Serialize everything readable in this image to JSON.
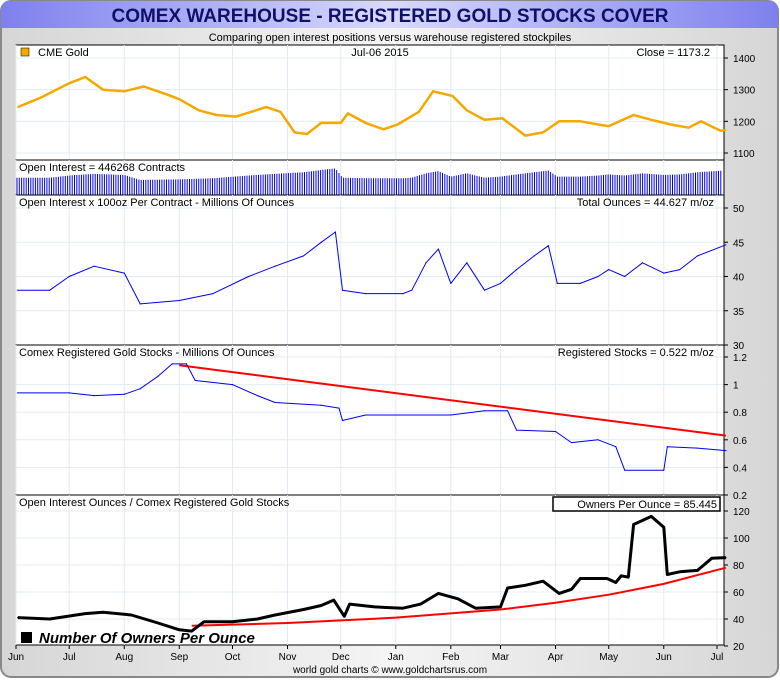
{
  "title": "COMEX WAREHOUSE - REGISTERED GOLD STOCKS COVER",
  "subtitle": "Comparing open interest positions versus warehouse registered stockpiles",
  "footer": "world gold charts © www.goldchartsrus.com",
  "colors": {
    "gold": "#f5a800",
    "blue": "#0000ee",
    "red": "#ff0000",
    "black": "#000000",
    "title_text": "#10106a",
    "title_bar": "#8a8cf0"
  },
  "chart_data": [
    {
      "type": "line",
      "legend": "CME Gold",
      "date_label": "Jul-06  2015",
      "readout": "Close = 1173.2",
      "ylim": [
        1080,
        1420
      ],
      "yticks": [
        "1400",
        "1300",
        "1200",
        "1100"
      ],
      "x": [
        "2014-06-02",
        "2014-06-15",
        "2014-07-01",
        "2014-07-10",
        "2014-07-20",
        "2014-08-01",
        "2014-08-12",
        "2014-08-25",
        "2014-09-01",
        "2014-09-12",
        "2014-09-22",
        "2014-10-03",
        "2014-10-20",
        "2014-10-28",
        "2014-11-05",
        "2014-11-12",
        "2014-11-20",
        "2014-12-01",
        "2014-12-05",
        "2014-12-15",
        "2014-12-25",
        "2015-01-02",
        "2015-01-14",
        "2015-01-22",
        "2015-02-02",
        "2015-02-10",
        "2015-02-20",
        "2015-03-02",
        "2015-03-15",
        "2015-03-25",
        "2015-04-03",
        "2015-04-15",
        "2015-04-25",
        "2015-05-01",
        "2015-05-15",
        "2015-05-25",
        "2015-06-05",
        "2015-06-15",
        "2015-06-22",
        "2015-07-03",
        "2015-07-06"
      ],
      "values": [
        1245,
        1275,
        1320,
        1340,
        1300,
        1295,
        1310,
        1285,
        1270,
        1235,
        1220,
        1215,
        1245,
        1230,
        1165,
        1160,
        1195,
        1195,
        1225,
        1195,
        1175,
        1190,
        1230,
        1295,
        1280,
        1235,
        1205,
        1210,
        1155,
        1165,
        1200,
        1200,
        1190,
        1185,
        1220,
        1205,
        1190,
        1180,
        1200,
        1170,
        1173.2
      ]
    },
    {
      "type": "bar",
      "label": "Open Interest = 446268 Contracts"
    },
    {
      "type": "line",
      "label": "Open Interest x 100oz Per Contract - Millions Of Ounces",
      "readout": "Total Ounces = 44.627 m/oz",
      "ylim": [
        30,
        52
      ],
      "yticks": [
        "50",
        "45",
        "40",
        "35",
        "30"
      ],
      "x": [
        "2014-06-02",
        "2014-06-20",
        "2014-07-01",
        "2014-07-15",
        "2014-08-01",
        "2014-08-10",
        "2014-09-01",
        "2014-09-20",
        "2014-10-10",
        "2014-10-25",
        "2014-11-10",
        "2014-11-20",
        "2014-11-28",
        "2014-12-02",
        "2014-12-15",
        "2015-01-05",
        "2015-01-10",
        "2015-01-18",
        "2015-01-25",
        "2015-02-01",
        "2015-02-10",
        "2015-02-20",
        "2015-03-01",
        "2015-03-10",
        "2015-03-20",
        "2015-03-28",
        "2015-04-02",
        "2015-04-15",
        "2015-04-25",
        "2015-05-01",
        "2015-05-10",
        "2015-05-20",
        "2015-06-01",
        "2015-06-10",
        "2015-06-20",
        "2015-07-06"
      ],
      "values": [
        38,
        38,
        40,
        41.5,
        40.5,
        36,
        36.5,
        37.5,
        40,
        41.5,
        43,
        45,
        46.5,
        38,
        37.5,
        37.5,
        38,
        42,
        44,
        39,
        42,
        38,
        39,
        41,
        43,
        44.5,
        39,
        39,
        40,
        41,
        40,
        42,
        40.5,
        41,
        43,
        44.627
      ]
    },
    {
      "type": "line",
      "label": "Comex Registered Gold Stocks - Millions Of Ounces",
      "readout": "Registered Stocks = 0.522 m/oz",
      "ylim": [
        0.2,
        1.22
      ],
      "yticks": [
        "1.2",
        "1",
        "0.8",
        "0.6",
        "0.4",
        "0.2"
      ],
      "x": [
        "2014-06-02",
        "2014-07-01",
        "2014-07-15",
        "2014-08-01",
        "2014-08-10",
        "2014-08-20",
        "2014-08-28",
        "2014-09-05",
        "2014-09-10",
        "2014-10-01",
        "2014-10-15",
        "2014-10-25",
        "2014-11-20",
        "2014-11-30",
        "2014-12-02",
        "2014-12-15",
        "2015-02-01",
        "2015-02-20",
        "2015-03-05",
        "2015-03-10",
        "2015-04-01",
        "2015-04-10",
        "2015-04-25",
        "2015-05-05",
        "2015-05-10",
        "2015-06-01",
        "2015-06-03",
        "2015-06-20",
        "2015-07-06"
      ],
      "values": [
        0.94,
        0.94,
        0.92,
        0.93,
        0.97,
        1.06,
        1.15,
        1.15,
        1.03,
        1.0,
        0.92,
        0.87,
        0.85,
        0.83,
        0.74,
        0.78,
        0.78,
        0.81,
        0.81,
        0.67,
        0.66,
        0.58,
        0.6,
        0.55,
        0.38,
        0.38,
        0.55,
        0.54,
        0.522
      ],
      "trend": {
        "x": [
          "2014-09-01",
          "2015-07-06"
        ],
        "values": [
          1.14,
          0.63
        ]
      }
    },
    {
      "type": "line",
      "label": "Open Interest Ounces / Comex Registered Gold Stocks",
      "readout": "Owners Per Ounce = 85.445",
      "legend": "Number Of Owners Per Ounce",
      "ylim": [
        20,
        124
      ],
      "yticks": [
        "120",
        "100",
        "80",
        "60",
        "40",
        "20"
      ],
      "x": [
        "2014-06-02",
        "2014-06-20",
        "2014-07-10",
        "2014-07-20",
        "2014-08-05",
        "2014-08-20",
        "2014-09-01",
        "2014-09-08",
        "2014-09-15",
        "2014-10-01",
        "2014-10-15",
        "2014-10-25",
        "2014-11-10",
        "2014-11-20",
        "2014-11-27",
        "2014-12-03",
        "2014-12-06",
        "2014-12-20",
        "2015-01-05",
        "2015-01-15",
        "2015-01-25",
        "2015-02-05",
        "2015-02-15",
        "2015-03-01",
        "2015-03-05",
        "2015-03-15",
        "2015-03-25",
        "2015-04-03",
        "2015-04-10",
        "2015-04-15",
        "2015-04-30",
        "2015-05-05",
        "2015-05-08",
        "2015-05-12",
        "2015-05-15",
        "2015-05-25",
        "2015-06-01",
        "2015-06-03",
        "2015-06-10",
        "2015-06-20",
        "2015-06-28",
        "2015-07-06"
      ],
      "values": [
        41,
        40,
        44,
        45,
        43,
        37,
        32,
        31,
        38,
        38,
        40,
        43,
        47,
        50,
        54,
        42,
        51,
        49,
        48,
        51,
        59,
        55,
        48,
        49,
        63,
        65,
        68,
        59,
        62,
        70,
        70,
        67,
        72,
        71,
        110,
        116,
        108,
        73,
        75,
        76,
        85,
        85.445
      ],
      "trend": {
        "x": [
          "2014-09-08",
          "2014-11-01",
          "2015-01-01",
          "2015-03-01",
          "2015-04-01",
          "2015-05-01",
          "2015-06-01",
          "2015-07-06"
        ],
        "values": [
          35,
          37,
          41,
          47,
          52,
          58,
          66,
          78
        ]
      }
    }
  ],
  "x_axis": {
    "ticks": [
      "Jun",
      "Jul",
      "Aug",
      "Sep",
      "Oct",
      "Nov",
      "Dec",
      "Jan",
      "Feb",
      "Mar",
      "Apr",
      "May",
      "Jun",
      "Jul"
    ],
    "tick_dates": [
      "2014-06-01",
      "2014-07-01",
      "2014-08-01",
      "2014-09-01",
      "2014-10-01",
      "2014-11-01",
      "2014-12-01",
      "2015-01-01",
      "2015-02-01",
      "2015-03-01",
      "2015-04-01",
      "2015-05-01",
      "2015-06-01",
      "2015-07-01"
    ]
  }
}
